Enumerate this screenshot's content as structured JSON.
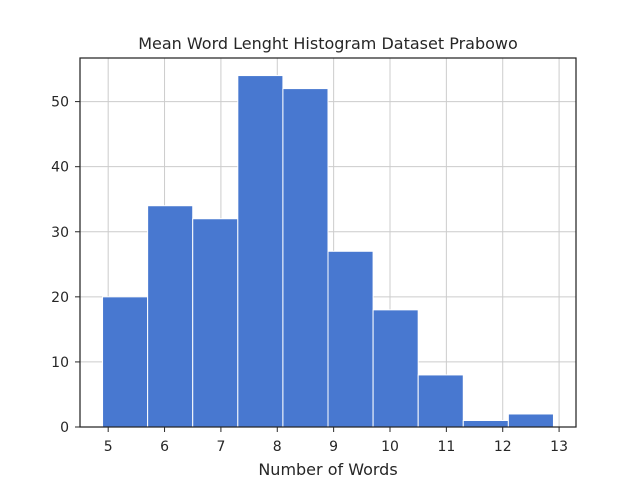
{
  "chart_data": {
    "type": "bar",
    "subtype": "histogram",
    "title": "Mean Word Lenght Histogram Dataset Prabowo",
    "xlabel": "Number of Words",
    "ylabel": "",
    "bin_edges": [
      4.9,
      5.7,
      6.5,
      7.3,
      8.1,
      8.9,
      9.7,
      10.5,
      11.3,
      12.1,
      12.9
    ],
    "values": [
      20,
      34,
      32,
      54,
      52,
      27,
      18,
      8,
      1,
      2
    ],
    "xlim": [
      4.5,
      13.3
    ],
    "ylim": [
      0,
      56.7
    ],
    "xticks": [
      5,
      6,
      7,
      8,
      9,
      10,
      11,
      12,
      13
    ],
    "yticks": [
      0,
      10,
      20,
      30,
      40,
      50
    ],
    "grid": true,
    "bar_color": "#4878d0",
    "grid_color": "#cccccc",
    "axes_color": "#262626"
  }
}
